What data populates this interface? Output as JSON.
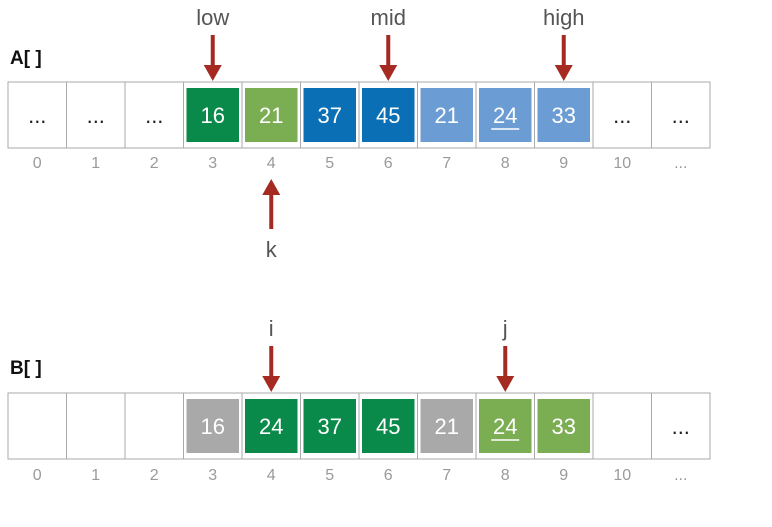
{
  "colors": {
    "dark_green": "#0a8a4a",
    "light_green": "#7bad52",
    "dark_blue": "#0a6fb4",
    "light_blue": "#6b9dd4",
    "gray": "#a9a9a9",
    "arrow": "#a52a22",
    "border": "#aaaaaa",
    "index_text": "#9a9a9a",
    "label_text": "#555555"
  },
  "arrays": [
    {
      "label": "A[ ]",
      "cells": [
        {
          "text": "...",
          "color": "none"
        },
        {
          "text": "...",
          "color": "none"
        },
        {
          "text": "...",
          "color": "none"
        },
        {
          "text": "16",
          "color": "dark_green"
        },
        {
          "text": "21",
          "color": "light_green"
        },
        {
          "text": "37",
          "color": "dark_blue"
        },
        {
          "text": "45",
          "color": "dark_blue"
        },
        {
          "text": "21",
          "color": "light_blue"
        },
        {
          "text": "24",
          "color": "light_blue",
          "underline": true
        },
        {
          "text": "33",
          "color": "light_blue"
        },
        {
          "text": "...",
          "color": "none"
        },
        {
          "text": "...",
          "color": "none"
        }
      ],
      "indices": [
        "0",
        "1",
        "2",
        "3",
        "4",
        "5",
        "6",
        "7",
        "8",
        "9",
        "10",
        "..."
      ],
      "pointers": [
        {
          "label": "low",
          "index": 3,
          "side": "above"
        },
        {
          "label": "mid",
          "index": 6,
          "side": "above"
        },
        {
          "label": "high",
          "index": 9,
          "side": "above"
        },
        {
          "label": "k",
          "index": 4,
          "side": "below"
        }
      ]
    },
    {
      "label": "B[ ]",
      "cells": [
        {
          "text": "",
          "color": "none"
        },
        {
          "text": "",
          "color": "none"
        },
        {
          "text": "",
          "color": "none"
        },
        {
          "text": "16",
          "color": "gray"
        },
        {
          "text": "24",
          "color": "dark_green"
        },
        {
          "text": "37",
          "color": "dark_green"
        },
        {
          "text": "45",
          "color": "dark_green"
        },
        {
          "text": "21",
          "color": "gray"
        },
        {
          "text": "24",
          "color": "light_green",
          "underline": true
        },
        {
          "text": "33",
          "color": "light_green"
        },
        {
          "text": "",
          "color": "none"
        },
        {
          "text": "...",
          "color": "none"
        }
      ],
      "indices": [
        "0",
        "1",
        "2",
        "3",
        "4",
        "5",
        "6",
        "7",
        "8",
        "9",
        "10",
        "..."
      ],
      "pointers": [
        {
          "label": "i",
          "index": 4,
          "side": "above"
        },
        {
          "label": "j",
          "index": 8,
          "side": "above"
        }
      ]
    }
  ]
}
